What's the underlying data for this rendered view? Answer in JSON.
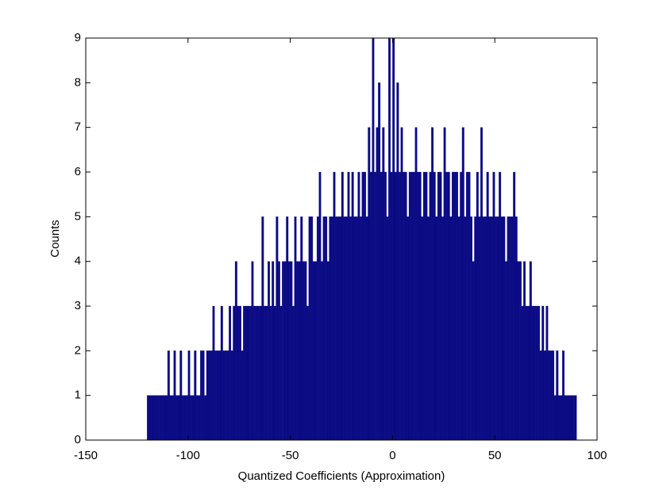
{
  "chart_data": {
    "type": "histogram",
    "xlabel": "Quantized Coefficients (Approximation)",
    "ylabel": "Counts",
    "color": "#0b0b84",
    "bins": [
      -120,
      -119,
      -118,
      -117,
      -116,
      -115,
      -114,
      -113,
      -112,
      -111,
      -110,
      -109,
      -108,
      -107,
      -106,
      -105,
      -104,
      -103,
      -102,
      -101,
      -100,
      -99,
      -98,
      -97,
      -96,
      -95,
      -94,
      -93,
      -92,
      -91,
      -90,
      -89,
      -88,
      -87,
      -86,
      -85,
      -84,
      -83,
      -82,
      -81,
      -80,
      -79,
      -78,
      -77,
      -76,
      -75,
      -74,
      -73,
      -72,
      -71,
      -70,
      -69,
      -68,
      -67,
      -66,
      -65,
      -64,
      -63,
      -62,
      -61,
      -60,
      -59,
      -58,
      -57,
      -56,
      -55,
      -54,
      -53,
      -52,
      -51,
      -50,
      -49,
      -48,
      -47,
      -46,
      -45,
      -44,
      -43,
      -42,
      -41,
      -40,
      -39,
      -38,
      -37,
      -36,
      -35,
      -34,
      -33,
      -32,
      -31,
      -30,
      -29,
      -28,
      -27,
      -26,
      -25,
      -24,
      -23,
      -22,
      -21,
      -20,
      -19,
      -18,
      -17,
      -16,
      -15,
      -14,
      -13,
      -12,
      -11,
      -10,
      -9,
      -8,
      -7,
      -6,
      -5,
      -4,
      -3,
      -2,
      -1,
      0,
      1,
      2,
      3,
      4,
      5,
      6,
      7,
      8,
      9,
      10,
      11,
      12,
      13,
      14,
      15,
      16,
      17,
      18,
      19,
      20,
      21,
      22,
      23,
      24,
      25,
      26,
      27,
      28,
      29,
      30,
      31,
      32,
      33,
      34,
      35,
      36,
      37,
      38,
      39,
      40,
      41,
      42,
      43,
      44,
      45,
      46,
      47,
      48,
      49,
      50,
      51,
      52,
      53,
      54,
      55,
      56,
      57,
      58,
      59,
      60,
      61,
      62,
      63,
      64,
      65,
      66,
      67,
      68,
      69,
      70,
      71,
      72,
      73,
      74,
      75,
      76,
      77,
      78,
      79,
      80,
      81,
      82,
      83,
      84,
      85,
      86,
      87,
      88,
      89,
      90
    ],
    "values": [
      1,
      1,
      1,
      1,
      1,
      1,
      1,
      1,
      1,
      1,
      2,
      1,
      1,
      2,
      1,
      1,
      2,
      1,
      1,
      1,
      2,
      1,
      1,
      2,
      1,
      1,
      2,
      2,
      1,
      2,
      2,
      2,
      3,
      2,
      2,
      2,
      3,
      2,
      2,
      2,
      3,
      2,
      3,
      4,
      3,
      3,
      2,
      3,
      3,
      3,
      3,
      4,
      3,
      3,
      3,
      3,
      5,
      3,
      3,
      4,
      3,
      4,
      3,
      5,
      4,
      3,
      4,
      4,
      5,
      4,
      4,
      3,
      5,
      4,
      4,
      5,
      4,
      4,
      3,
      5,
      5,
      4,
      4,
      5,
      6,
      4,
      5,
      5,
      4,
      5,
      5,
      6,
      5,
      5,
      5,
      6,
      5,
      5,
      6,
      5,
      6,
      5,
      5,
      6,
      5,
      6,
      6,
      5,
      7,
      6,
      9,
      6,
      7,
      8,
      6,
      7,
      6,
      5,
      9,
      6,
      9,
      6,
      8,
      6,
      7,
      6,
      6,
      5,
      6,
      6,
      6,
      7,
      6,
      6,
      5,
      6,
      6,
      5,
      6,
      7,
      6,
      5,
      6,
      6,
      5,
      7,
      6,
      6,
      5,
      6,
      6,
      6,
      5,
      6,
      7,
      5,
      6,
      6,
      5,
      4,
      5,
      6,
      5,
      7,
      5,
      5,
      6,
      5,
      5,
      6,
      5,
      5,
      6,
      5,
      5,
      4,
      5,
      5,
      5,
      6,
      5,
      4,
      4,
      3,
      4,
      3,
      3,
      4,
      3,
      3,
      3,
      3,
      2,
      3,
      2,
      3,
      2,
      2,
      2,
      1,
      2,
      1,
      1,
      2,
      1,
      1,
      1,
      1,
      1,
      1
    ],
    "xlim": [
      -150,
      100
    ],
    "xticks": [
      -150,
      -100,
      -50,
      0,
      50,
      100
    ],
    "ylim": [
      0,
      9
    ],
    "yticks": [
      0,
      1,
      2,
      3,
      4,
      5,
      6,
      7,
      8,
      9
    ]
  }
}
